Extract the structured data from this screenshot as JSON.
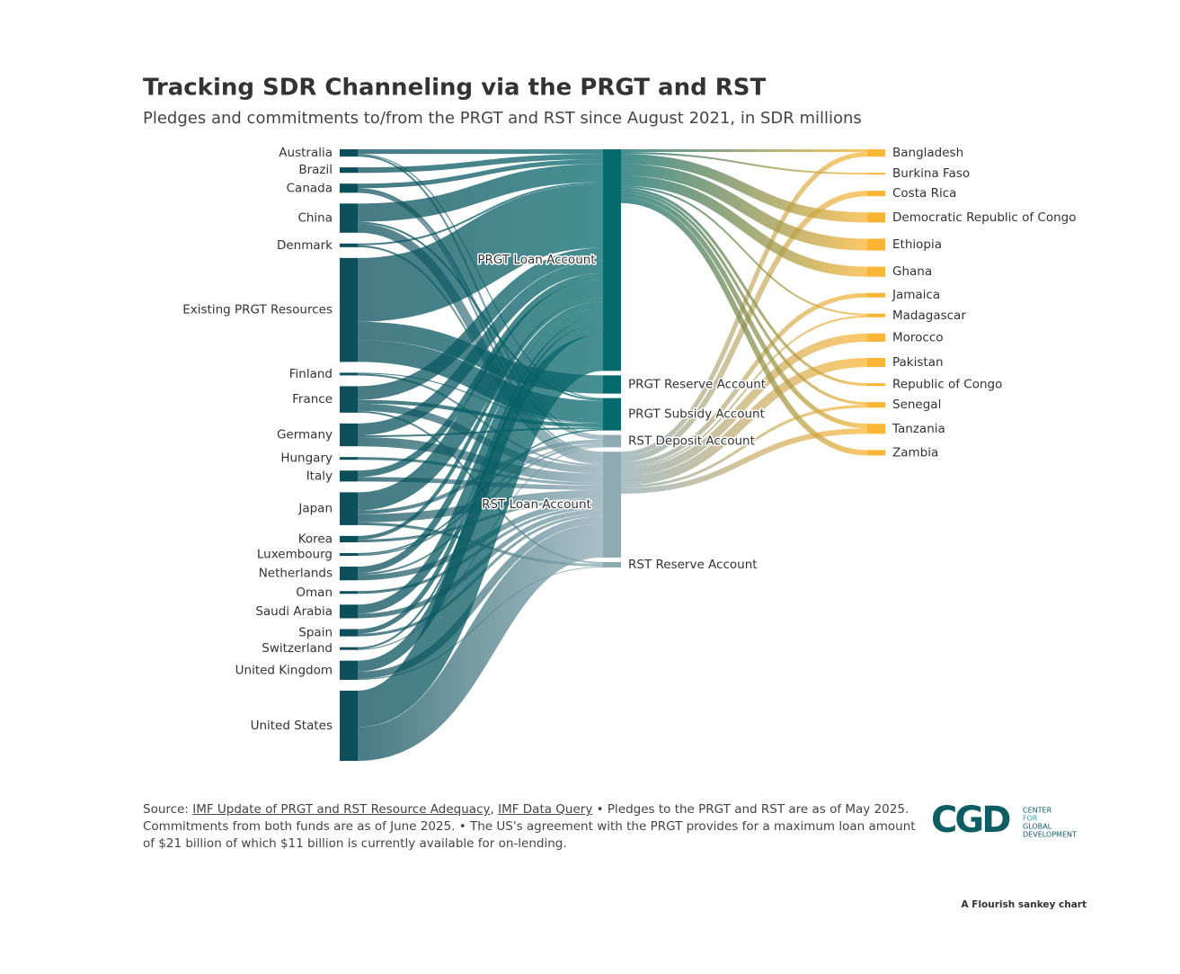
{
  "chart_data": {
    "type": "sankey",
    "title": "Tracking SDR Channeling via the PRGT and RST",
    "subtitle": "Pledges and commitments to/from the PRGT and RST since August 2021, in SDR millions",
    "nodes": [
      {
        "name": "Australia",
        "color": "#0b4f5b"
      },
      {
        "name": "Brazil",
        "color": "#0b4f5b"
      },
      {
        "name": "Canada",
        "color": "#0b4f5b"
      },
      {
        "name": "China",
        "color": "#0b4f5b"
      },
      {
        "name": "Denmark",
        "color": "#0b4f5b"
      },
      {
        "name": "Existing PRGT Resources",
        "color": "#0b4f5b"
      },
      {
        "name": "Finland",
        "color": "#0b4f5b"
      },
      {
        "name": "France",
        "color": "#0b4f5b"
      },
      {
        "name": "Germany",
        "color": "#0b4f5b"
      },
      {
        "name": "Hungary",
        "color": "#0b4f5b"
      },
      {
        "name": "Italy",
        "color": "#0b4f5b"
      },
      {
        "name": "Japan",
        "color": "#0b4f5b"
      },
      {
        "name": "Korea",
        "color": "#0b4f5b"
      },
      {
        "name": "Luxembourg",
        "color": "#0b4f5b"
      },
      {
        "name": "Netherlands",
        "color": "#0b4f5b"
      },
      {
        "name": "Oman",
        "color": "#0b4f5b"
      },
      {
        "name": "Saudi Arabia",
        "color": "#0b4f5b"
      },
      {
        "name": "Spain",
        "color": "#0b4f5b"
      },
      {
        "name": "Switzerland",
        "color": "#0b4f5b"
      },
      {
        "name": "United Kingdom",
        "color": "#0b4f5b"
      },
      {
        "name": "United States",
        "color": "#0b4f5b"
      },
      {
        "name": "PRGT Loan Account",
        "color": "#06696d"
      },
      {
        "name": "PRGT Reserve Account",
        "color": "#06696d"
      },
      {
        "name": "PRGT Subsidy Account",
        "color": "#06696d"
      },
      {
        "name": "RST Deposit Account",
        "color": "#8eaab3"
      },
      {
        "name": "RST Loan Account",
        "color": "#8eaab3"
      },
      {
        "name": "RST Reserve Account",
        "color": "#8eaab3"
      },
      {
        "name": "Bangladesh",
        "color": "#fbb535"
      },
      {
        "name": "Burkina Faso",
        "color": "#fbb535"
      },
      {
        "name": "Costa Rica",
        "color": "#fbb535"
      },
      {
        "name": "Democratic Republic of Congo",
        "color": "#fbb535"
      },
      {
        "name": "Ethiopia",
        "color": "#fbb535"
      },
      {
        "name": "Ghana",
        "color": "#fbb535"
      },
      {
        "name": "Jamaica",
        "color": "#fbb535"
      },
      {
        "name": "Madagascar",
        "color": "#fbb535"
      },
      {
        "name": "Morocco",
        "color": "#fbb535"
      },
      {
        "name": "Pakistan",
        "color": "#fbb535"
      },
      {
        "name": "Republic of Congo",
        "color": "#fbb535"
      },
      {
        "name": "Senegal",
        "color": "#fbb535"
      },
      {
        "name": "Tanzania",
        "color": "#fbb535"
      },
      {
        "name": "Zambia",
        "color": "#fbb535"
      }
    ],
    "links": [
      {
        "source": "Australia",
        "target": "PRGT Loan Account",
        "value": 500
      },
      {
        "source": "Australia",
        "target": "PRGT Subsidy Account",
        "value": 100
      },
      {
        "source": "Australia",
        "target": "RST Deposit Account",
        "value": 200
      },
      {
        "source": "Brazil",
        "target": "PRGT Loan Account",
        "value": 600
      },
      {
        "source": "Canada",
        "target": "PRGT Loan Account",
        "value": 500
      },
      {
        "source": "Canada",
        "target": "RST Deposit Account",
        "value": 300
      },
      {
        "source": "Canada",
        "target": "RST Loan Account",
        "value": 200
      },
      {
        "source": "China",
        "target": "PRGT Loan Account",
        "value": 2000
      },
      {
        "source": "China",
        "target": "PRGT Subsidy Account",
        "value": 200
      },
      {
        "source": "China",
        "target": "RST Loan Account",
        "value": 1000
      },
      {
        "source": "Denmark",
        "target": "PRGT Loan Account",
        "value": 200
      },
      {
        "source": "Denmark",
        "target": "RST Loan Account",
        "value": 200
      },
      {
        "source": "Existing PRGT Resources",
        "target": "PRGT Loan Account",
        "value": 7000
      },
      {
        "source": "Existing PRGT Resources",
        "target": "PRGT Reserve Account",
        "value": 2000
      },
      {
        "source": "Existing PRGT Resources",
        "target": "PRGT Subsidy Account",
        "value": 2400
      },
      {
        "source": "Finland",
        "target": "PRGT Subsidy Account",
        "value": 100
      },
      {
        "source": "Finland",
        "target": "RST Loan Account",
        "value": 200
      },
      {
        "source": "France",
        "target": "PRGT Loan Account",
        "value": 1500
      },
      {
        "source": "France",
        "target": "PRGT Subsidy Account",
        "value": 400
      },
      {
        "source": "France",
        "target": "RST Loan Account",
        "value": 800
      },
      {
        "source": "France",
        "target": "RST Reserve Account",
        "value": 200
      },
      {
        "source": "Germany",
        "target": "PRGT Loan Account",
        "value": 1300
      },
      {
        "source": "Germany",
        "target": "PRGT Subsidy Account",
        "value": 200
      },
      {
        "source": "Germany",
        "target": "RST Loan Account",
        "value": 1000
      },
      {
        "source": "Hungary",
        "target": "RST Loan Account",
        "value": 300
      },
      {
        "source": "Italy",
        "target": "PRGT Loan Account",
        "value": 700
      },
      {
        "source": "Italy",
        "target": "RST Loan Account",
        "value": 500
      },
      {
        "source": "Japan",
        "target": "PRGT Loan Account",
        "value": 2000
      },
      {
        "source": "Japan",
        "target": "RST Deposit Account",
        "value": 400
      },
      {
        "source": "Japan",
        "target": "RST Loan Account",
        "value": 900
      },
      {
        "source": "Japan",
        "target": "RST Reserve Account",
        "value": 300
      },
      {
        "source": "Korea",
        "target": "PRGT Loan Account",
        "value": 400
      },
      {
        "source": "Korea",
        "target": "RST Loan Account",
        "value": 300
      },
      {
        "source": "Luxembourg",
        "target": "PRGT Subsidy Account",
        "value": 150
      },
      {
        "source": "Luxembourg",
        "target": "RST Deposit Account",
        "value": 150
      },
      {
        "source": "Netherlands",
        "target": "PRGT Loan Account",
        "value": 700
      },
      {
        "source": "Netherlands",
        "target": "RST Deposit Account",
        "value": 200
      },
      {
        "source": "Netherlands",
        "target": "RST Loan Account",
        "value": 600
      },
      {
        "source": "Oman",
        "target": "RST Loan Account",
        "value": 300
      },
      {
        "source": "Saudi Arabia",
        "target": "PRGT Loan Account",
        "value": 1000
      },
      {
        "source": "Saudi Arabia",
        "target": "RST Loan Account",
        "value": 500
      },
      {
        "source": "Spain",
        "target": "PRGT Loan Account",
        "value": 500
      },
      {
        "source": "Spain",
        "target": "RST Loan Account",
        "value": 300
      },
      {
        "source": "Switzerland",
        "target": "PRGT Loan Account",
        "value": 200
      },
      {
        "source": "Switzerland",
        "target": "RST Deposit Account",
        "value": 100
      },
      {
        "source": "United Kingdom",
        "target": "PRGT Loan Account",
        "value": 1200
      },
      {
        "source": "United Kingdom",
        "target": "RST Loan Account",
        "value": 800
      },
      {
        "source": "United Kingdom",
        "target": "RST Reserve Account",
        "value": 100
      },
      {
        "source": "United States",
        "target": "PRGT Loan Account",
        "value": 4000
      },
      {
        "source": "United States",
        "target": "RST Loan Account",
        "value": 3700
      },
      {
        "source": "PRGT Loan Account",
        "target": "Bangladesh",
        "value": 300
      },
      {
        "source": "RST Loan Account",
        "target": "Bangladesh",
        "value": 500
      },
      {
        "source": "PRGT Loan Account",
        "target": "Burkina Faso",
        "value": 200
      },
      {
        "source": "RST Loan Account",
        "target": "Costa Rica",
        "value": 600
      },
      {
        "source": "PRGT Loan Account",
        "target": "Democratic Republic of Congo",
        "value": 1100
      },
      {
        "source": "PRGT Loan Account",
        "target": "Ethiopia",
        "value": 1300
      },
      {
        "source": "PRGT Loan Account",
        "target": "Ghana",
        "value": 1100
      },
      {
        "source": "RST Loan Account",
        "target": "Jamaica",
        "value": 500
      },
      {
        "source": "PRGT Loan Account",
        "target": "Madagascar",
        "value": 200
      },
      {
        "source": "RST Loan Account",
        "target": "Madagascar",
        "value": 200
      },
      {
        "source": "RST Loan Account",
        "target": "Morocco",
        "value": 900
      },
      {
        "source": "RST Loan Account",
        "target": "Pakistan",
        "value": 1000
      },
      {
        "source": "PRGT Loan Account",
        "target": "Republic of Congo",
        "value": 300
      },
      {
        "source": "PRGT Loan Account",
        "target": "Senegal",
        "value": 300
      },
      {
        "source": "RST Loan Account",
        "target": "Senegal",
        "value": 300
      },
      {
        "source": "PRGT Loan Account",
        "target": "Tanzania",
        "value": 500
      },
      {
        "source": "RST Loan Account",
        "target": "Tanzania",
        "value": 600
      },
      {
        "source": "PRGT Loan Account",
        "target": "Zambia",
        "value": 600
      }
    ]
  },
  "footer": {
    "label": "Source:",
    "links": [
      "IMF Update of PRGT and RST Resource Adequacy",
      "IMF Data Query"
    ],
    "separator": ",",
    "note": "• Pledges to the PRGT and RST are as of May 2025. Commitments from both funds are as of June 2025. • The US's agreement with the PRGT provides for a maximum loan amount of $21 billion of which $11 billion is currently available for on-lending."
  },
  "logo": {
    "mark": "CGD",
    "lines": [
      "CENTER",
      "FOR",
      "GLOBAL",
      "DEVELOPMENT"
    ]
  },
  "credit": "A Flourish sankey chart"
}
